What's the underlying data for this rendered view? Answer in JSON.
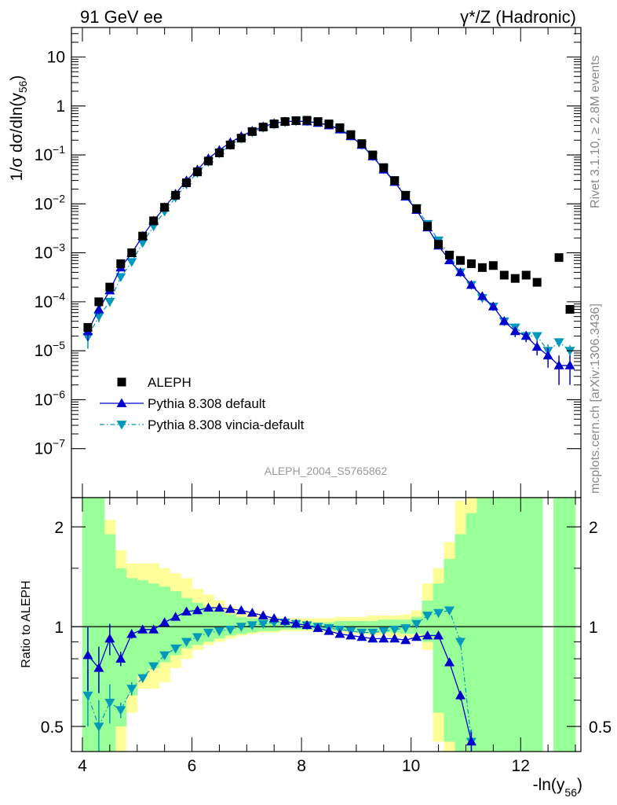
{
  "header": {
    "left": "91 GeV ee",
    "right": "γ*/Z (Hadronic)"
  },
  "side": {
    "rivet": "Rivet 3.1.10, ≥ 2.8M events",
    "mcplots": "mcplots.cern.ch [arXiv:1306.3436]"
  },
  "analysis_tag": "ALEPH_2004_S5765862",
  "colors": {
    "data": "#000000",
    "pythia_default": "#0000cc",
    "pythia_vincia": "#0099bb",
    "band_inner": "#99ff99",
    "band_outer": "#ffff99"
  },
  "chart_data": [
    {
      "type": "scatter",
      "panel": "main",
      "ylabel": "1/σ dσ/dln(y56)",
      "log_y": true,
      "xlim": [
        3.8,
        13.1
      ],
      "ylim": [
        1e-08,
        40
      ],
      "y_ticks": [
        {
          "v": 1e-07,
          "b": "10",
          "e": "−7"
        },
        {
          "v": 1e-06,
          "b": "10",
          "e": "−6"
        },
        {
          "v": 1e-05,
          "b": "10",
          "e": "−5"
        },
        {
          "v": 0.0001,
          "b": "10",
          "e": "−4"
        },
        {
          "v": 0.001,
          "b": "10",
          "e": "−3"
        },
        {
          "v": 0.01,
          "b": "10",
          "e": "−2"
        },
        {
          "v": 0.1,
          "b": "10",
          "e": "−1"
        },
        {
          "v": 1,
          "b": "1",
          "e": ""
        },
        {
          "v": 10,
          "b": "10",
          "e": ""
        }
      ],
      "legend": {
        "placement": "lower-left",
        "entries": [
          "ALEPH",
          "Pythia 8.308 default",
          "Pythia 8.308 vincia-default"
        ]
      },
      "series": [
        {
          "name": "ALEPH",
          "x": [
            4.1,
            4.3,
            4.5,
            4.7,
            4.9,
            5.1,
            5.3,
            5.5,
            5.7,
            5.9,
            6.1,
            6.3,
            6.5,
            6.7,
            6.9,
            7.1,
            7.3,
            7.5,
            7.7,
            7.9,
            8.1,
            8.3,
            8.5,
            8.7,
            8.9,
            9.1,
            9.3,
            9.5,
            9.7,
            9.9,
            10.1,
            10.3,
            10.5,
            10.7,
            10.9,
            11.1,
            11.3,
            11.5,
            11.7,
            11.9,
            12.1,
            12.3,
            12.7,
            12.9
          ],
          "y": [
            3e-05,
            0.0001,
            0.0002,
            0.0006,
            0.001,
            0.0022,
            0.0045,
            0.0085,
            0.015,
            0.027,
            0.045,
            0.075,
            0.11,
            0.16,
            0.22,
            0.3,
            0.37,
            0.43,
            0.48,
            0.5,
            0.51,
            0.48,
            0.43,
            0.36,
            0.26,
            0.17,
            0.1,
            0.055,
            0.03,
            0.015,
            0.008,
            0.0035,
            0.0015,
            0.0009,
            0.0007,
            0.0006,
            0.0005,
            0.00055,
            0.00035,
            0.0003,
            0.00035,
            0.00025,
            0.0008,
            7e-05
          ]
        },
        {
          "name": "Pythia 8.308 default",
          "x": [
            4.1,
            4.3,
            4.5,
            4.7,
            4.9,
            5.1,
            5.3,
            5.5,
            5.7,
            5.9,
            6.1,
            6.3,
            6.5,
            6.7,
            6.9,
            7.1,
            7.3,
            7.5,
            7.7,
            7.9,
            8.1,
            8.3,
            8.5,
            8.7,
            8.9,
            9.1,
            9.3,
            9.5,
            9.7,
            9.9,
            10.1,
            10.3,
            10.5,
            10.7,
            10.9,
            11.1,
            11.3,
            11.5,
            11.7,
            11.9,
            12.1,
            12.3,
            12.5,
            12.7,
            12.9
          ],
          "y": [
            2.5e-05,
            7e-05,
            0.00017,
            0.0005,
            0.00098,
            0.0022,
            0.0045,
            0.0085,
            0.016,
            0.03,
            0.05,
            0.085,
            0.125,
            0.18,
            0.24,
            0.31,
            0.38,
            0.44,
            0.48,
            0.49,
            0.48,
            0.45,
            0.4,
            0.33,
            0.24,
            0.16,
            0.093,
            0.05,
            0.028,
            0.014,
            0.0075,
            0.0033,
            0.0014,
            0.0007,
            0.0004,
            0.00022,
            0.00013,
            8e-05,
            4e-05,
            2.5e-05,
            2e-05,
            1.2e-05,
            8e-06,
            5e-06,
            5e-06
          ],
          "yerr": [
            9e-06,
            1.5e-05,
            2e-05,
            3e-05,
            5e-05,
            8e-05,
            0.0001,
            0.0002,
            0.0003,
            0.0004,
            0.0005,
            0.0007,
            0.0009,
            0.001,
            0.0012,
            0.0014,
            0.0016,
            0.0018,
            0.0019,
            0.002,
            0.002,
            0.0019,
            0.0018,
            0.0016,
            0.0014,
            0.0011,
            0.0008,
            0.0005,
            0.0003,
            0.00015,
            8e-05,
            4e-05,
            2e-05,
            1.5e-05,
            1.2e-05,
            1e-05,
            9e-06,
            8e-06,
            7e-06,
            6e-06,
            5e-06,
            4e-06,
            3.5e-06,
            3e-06,
            3e-06
          ]
        },
        {
          "name": "Pythia 8.308 vincia-default",
          "x": [
            4.1,
            4.3,
            4.5,
            4.7,
            4.9,
            5.1,
            5.3,
            5.5,
            5.7,
            5.9,
            6.1,
            6.3,
            6.5,
            6.7,
            6.9,
            7.1,
            7.3,
            7.5,
            7.7,
            7.9,
            8.1,
            8.3,
            8.5,
            8.7,
            8.9,
            9.1,
            9.3,
            9.5,
            9.7,
            9.9,
            10.1,
            10.3,
            10.5,
            10.7,
            10.9,
            11.1,
            11.3,
            11.5,
            11.7,
            11.9,
            12.1,
            12.3,
            12.5,
            12.7,
            12.9
          ],
          "y": [
            1.9e-05,
            5e-05,
            0.0001,
            0.00032,
            0.00065,
            0.0016,
            0.0035,
            0.007,
            0.0135,
            0.025,
            0.043,
            0.072,
            0.108,
            0.158,
            0.216,
            0.29,
            0.36,
            0.42,
            0.47,
            0.49,
            0.49,
            0.46,
            0.41,
            0.34,
            0.25,
            0.16,
            0.094,
            0.051,
            0.029,
            0.015,
            0.0082,
            0.0039,
            0.0018,
            0.0009,
            0.0004,
            0.00022,
            0.00012,
            8e-05,
            4e-05,
            3e-05,
            2e-05,
            2e-05,
            1e-05,
            1.5e-05,
            1e-05
          ],
          "yerr": [
            8e-06,
            1.2e-05,
            2e-05,
            3e-05,
            4e-05,
            7e-05,
            0.0001,
            0.0002,
            0.0003,
            0.0004,
            0.0005,
            0.0007,
            0.0009,
            0.001,
            0.0012,
            0.0014,
            0.0016,
            0.0018,
            0.0019,
            0.002,
            0.002,
            0.0019,
            0.0018,
            0.0016,
            0.0014,
            0.0011,
            0.0008,
            0.0005,
            0.0003,
            0.00015,
            8e-05,
            4e-05,
            2e-05,
            1.5e-05,
            1.2e-05,
            1e-05,
            9e-06,
            8e-06,
            7e-06,
            6e-06,
            5e-06,
            4e-06,
            3.5e-06,
            3e-06,
            3e-06
          ]
        }
      ]
    },
    {
      "type": "line",
      "panel": "ratio",
      "xlabel": "-ln(y56)",
      "ylabel": "Ratio to ALEPH",
      "log_y": true,
      "xlim": [
        3.8,
        13.1
      ],
      "ylim": [
        0.42,
        2.45
      ],
      "x_ticks": [
        4,
        6,
        8,
        10,
        12
      ],
      "y_ticks": [
        0.5,
        1,
        2
      ],
      "bands": {
        "bin_edges": [
          4.0,
          4.2,
          4.4,
          4.6,
          4.8,
          5.0,
          5.2,
          5.4,
          5.6,
          5.8,
          6.0,
          6.2,
          6.4,
          6.6,
          6.8,
          7.0,
          7.2,
          7.4,
          7.6,
          7.8,
          8.0,
          8.2,
          8.4,
          8.6,
          8.8,
          9.0,
          9.2,
          9.4,
          9.6,
          9.8,
          10.0,
          10.2,
          10.4,
          10.6,
          10.8,
          11.0,
          11.2,
          11.4,
          11.6,
          11.8,
          12.0,
          12.2,
          12.4,
          12.6,
          12.8,
          13.0
        ],
        "outer": [
          [
            0.3,
            2.8
          ],
          [
            0.3,
            2.8
          ],
          [
            0.3,
            2.1
          ],
          [
            0.42,
            1.7
          ],
          [
            0.55,
            1.55
          ],
          [
            0.65,
            1.55
          ],
          [
            0.65,
            1.55
          ],
          [
            0.68,
            1.5
          ],
          [
            0.75,
            1.45
          ],
          [
            0.8,
            1.4
          ],
          [
            0.85,
            1.3
          ],
          [
            0.88,
            1.25
          ],
          [
            0.9,
            1.2
          ],
          [
            0.92,
            1.15
          ],
          [
            0.94,
            1.12
          ],
          [
            0.95,
            1.1
          ],
          [
            0.96,
            1.08
          ],
          [
            0.96,
            1.07
          ],
          [
            0.97,
            1.06
          ],
          [
            0.97,
            1.06
          ],
          [
            0.97,
            1.06
          ],
          [
            0.97,
            1.06
          ],
          [
            0.96,
            1.06
          ],
          [
            0.96,
            1.07
          ],
          [
            0.95,
            1.07
          ],
          [
            0.95,
            1.07
          ],
          [
            0.94,
            1.08
          ],
          [
            0.94,
            1.08
          ],
          [
            0.93,
            1.08
          ],
          [
            0.93,
            1.09
          ],
          [
            0.92,
            1.12
          ],
          [
            0.85,
            1.35
          ],
          [
            0.45,
            1.5
          ],
          [
            0.3,
            1.8
          ],
          [
            0.3,
            2.4
          ],
          [
            0.3,
            2.8
          ],
          [
            0.3,
            2.8
          ],
          [
            0.3,
            2.8
          ],
          [
            0.3,
            2.8
          ],
          [
            0.3,
            2.8
          ],
          [
            0.3,
            2.8
          ],
          [
            0.3,
            2.8
          ],
          null,
          [
            0.3,
            2.8
          ],
          [
            0.3,
            2.8
          ]
        ],
        "inner": [
          [
            0.3,
            2.8
          ],
          [
            0.3,
            2.8
          ],
          [
            0.3,
            1.9
          ],
          [
            0.5,
            1.5
          ],
          [
            0.62,
            1.4
          ],
          [
            0.72,
            1.38
          ],
          [
            0.75,
            1.35
          ],
          [
            0.78,
            1.32
          ],
          [
            0.82,
            1.28
          ],
          [
            0.86,
            1.22
          ],
          [
            0.88,
            1.18
          ],
          [
            0.9,
            1.15
          ],
          [
            0.92,
            1.12
          ],
          [
            0.94,
            1.09
          ],
          [
            0.95,
            1.07
          ],
          [
            0.96,
            1.06
          ],
          [
            0.97,
            1.05
          ],
          [
            0.97,
            1.04
          ],
          [
            0.98,
            1.03
          ],
          [
            0.98,
            1.03
          ],
          [
            0.98,
            1.03
          ],
          [
            0.98,
            1.03
          ],
          [
            0.97,
            1.03
          ],
          [
            0.97,
            1.04
          ],
          [
            0.97,
            1.04
          ],
          [
            0.97,
            1.04
          ],
          [
            0.96,
            1.04
          ],
          [
            0.96,
            1.05
          ],
          [
            0.96,
            1.05
          ],
          [
            0.95,
            1.05
          ],
          [
            0.95,
            1.07
          ],
          [
            0.9,
            1.2
          ],
          [
            0.55,
            1.35
          ],
          [
            0.45,
            1.6
          ],
          [
            0.3,
            1.9
          ],
          [
            0.3,
            2.2
          ],
          [
            0.3,
            2.8
          ],
          [
            0.3,
            2.8
          ],
          [
            0.3,
            2.8
          ],
          [
            0.3,
            2.8
          ],
          [
            0.3,
            2.8
          ],
          [
            0.3,
            2.8
          ],
          null,
          [
            0.3,
            2.8
          ],
          [
            0.3,
            2.8
          ]
        ]
      },
      "series": [
        {
          "name": "Pythia 8.308 default",
          "x": [
            4.1,
            4.3,
            4.5,
            4.7,
            4.9,
            5.1,
            5.3,
            5.5,
            5.7,
            5.9,
            6.1,
            6.3,
            6.5,
            6.7,
            6.9,
            7.1,
            7.3,
            7.5,
            7.7,
            7.9,
            8.1,
            8.3,
            8.5,
            8.7,
            8.9,
            9.1,
            9.3,
            9.5,
            9.7,
            9.9,
            10.1,
            10.3,
            10.5,
            10.7,
            10.9,
            11.1
          ],
          "y": [
            0.82,
            0.75,
            0.92,
            0.8,
            0.95,
            0.98,
            0.98,
            1.03,
            1.07,
            1.11,
            1.12,
            1.14,
            1.14,
            1.13,
            1.12,
            1.1,
            1.08,
            1.06,
            1.04,
            1.02,
            1.01,
            0.99,
            0.97,
            0.95,
            0.94,
            0.93,
            0.92,
            0.92,
            0.92,
            0.91,
            0.93,
            0.94,
            0.94,
            0.78,
            0.62,
            0.45
          ],
          "yerr": [
            0.18,
            0.12,
            0.1,
            0.04,
            0.03,
            0.02,
            0.01,
            0.01,
            0.01,
            0.01,
            0.01,
            0.01,
            0.01,
            0.01,
            0.01,
            0.01,
            0.01,
            0.01,
            0.01,
            0.01,
            0.01,
            0.01,
            0.01,
            0.01,
            0.01,
            0.01,
            0.01,
            0.01,
            0.01,
            0.01,
            0.01,
            0.01,
            0.01,
            0.02,
            0.02,
            0.03
          ]
        },
        {
          "name": "Pythia 8.308 vincia-default",
          "x": [
            4.1,
            4.3,
            4.5,
            4.7,
            4.9,
            5.1,
            5.3,
            5.5,
            5.7,
            5.9,
            6.1,
            6.3,
            6.5,
            6.7,
            6.9,
            7.1,
            7.3,
            7.5,
            7.7,
            7.9,
            8.1,
            8.3,
            8.5,
            8.7,
            8.9,
            9.1,
            9.3,
            9.5,
            9.7,
            9.9,
            10.1,
            10.3,
            10.5,
            10.7,
            10.9,
            11.1
          ],
          "y": [
            0.62,
            0.5,
            0.59,
            0.56,
            0.65,
            0.7,
            0.76,
            0.82,
            0.86,
            0.9,
            0.93,
            0.96,
            0.97,
            0.98,
            1.0,
            1.01,
            1.02,
            1.03,
            1.03,
            1.02,
            1.01,
            1.0,
            0.99,
            0.98,
            0.97,
            0.96,
            0.96,
            0.97,
            0.98,
            0.99,
            1.02,
            1.08,
            1.1,
            1.12,
            0.9,
            0.45
          ],
          "yerr": [
            0.12,
            0.1,
            0.08,
            0.03,
            0.03,
            0.02,
            0.01,
            0.01,
            0.01,
            0.01,
            0.01,
            0.01,
            0.01,
            0.01,
            0.01,
            0.01,
            0.01,
            0.01,
            0.01,
            0.01,
            0.01,
            0.01,
            0.01,
            0.01,
            0.01,
            0.01,
            0.01,
            0.01,
            0.01,
            0.01,
            0.01,
            0.01,
            0.02,
            0.02,
            0.03,
            0.04
          ]
        }
      ]
    }
  ]
}
